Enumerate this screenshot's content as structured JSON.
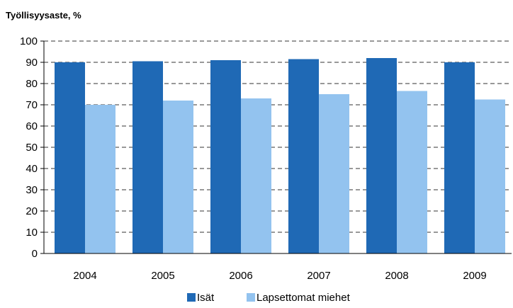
{
  "chart_data": {
    "type": "bar",
    "title": "Työllisyysaste, %",
    "xlabel": "",
    "ylabel": "",
    "categories": [
      "2004",
      "2005",
      "2006",
      "2007",
      "2008",
      "2009"
    ],
    "series": [
      {
        "name": "Isät",
        "color": "#1f69b5",
        "values": [
          90,
          90.5,
          91,
          91.5,
          92,
          90
        ]
      },
      {
        "name": "Lapsettomat miehet",
        "color": "#93c3ef",
        "values": [
          70,
          72,
          73,
          75,
          76.5,
          72.5
        ]
      }
    ],
    "ylim": [
      0,
      100
    ],
    "yticks": [
      0,
      10,
      20,
      30,
      40,
      50,
      60,
      70,
      80,
      90,
      100
    ],
    "grid": true,
    "legend_position": "bottom-center"
  }
}
